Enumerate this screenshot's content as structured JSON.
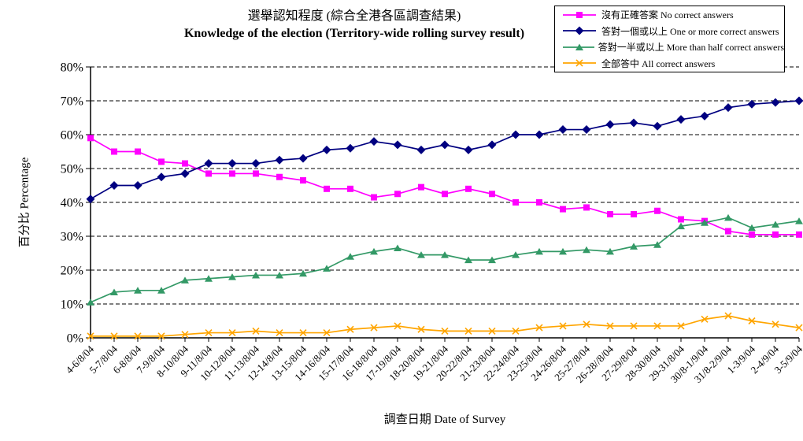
{
  "title": {
    "zh": "選舉認知程度  (綜合全港各區調查結果)",
    "en": "Knowledge of the election (Territory-wide rolling survey result)"
  },
  "axes": {
    "y_title": "百分比 Percentage",
    "x_title": "調查日期 Date of Survey",
    "y_tick_labels": [
      "0%",
      "10%",
      "20%",
      "30%",
      "40%",
      "50%",
      "60%",
      "70%",
      "80%"
    ]
  },
  "chart_data": {
    "type": "line",
    "title": "選舉認知程度 (綜合全港各區調查結果) / Knowledge of the election (Territory-wide rolling survey result)",
    "xlabel": "調查日期 Date of Survey",
    "ylabel": "百分比 Percentage",
    "ylim": [
      0,
      80
    ],
    "y_tick_step": 10,
    "grid": "horizontal-dashed",
    "legend_position": "top-right",
    "categories": [
      "4-6/8/04",
      "5-7/8/04",
      "6-8/8/04",
      "7-9/8/04",
      "8-10/8/04",
      "9-11/8/04",
      "10-12/8/04",
      "11-13/8/04",
      "12-14/8/04",
      "13-15/8/04",
      "14-16/8/04",
      "15-17/8/04",
      "16-18/8/04",
      "17-19/8/04",
      "18-20/8/04",
      "19-21/8/04",
      "20-22/8/04",
      "21-23/8/04",
      "22-24/8/04",
      "23-25/8/04",
      "24-26/8/04",
      "25-27/8/04",
      "26-28//8/04",
      "27-29/8/04",
      "28-30/8/04",
      "29-31/8/04",
      "30/8-1/9/04",
      "31/8-2/9/04",
      "1-3/9/04",
      "2-4/9/04",
      "3-5/9/04"
    ],
    "series": [
      {
        "name": "沒有正確答案 No correct answers",
        "color": "#FF00FF",
        "marker": "square",
        "values": [
          59,
          55,
          55,
          52,
          51.5,
          48.5,
          48.5,
          48.5,
          47.5,
          46.5,
          44,
          44,
          41.5,
          42.5,
          44.5,
          42.5,
          44,
          42.5,
          40,
          40,
          38,
          38.5,
          36.5,
          36.5,
          37.5,
          35,
          34.5,
          31.5,
          30.5,
          30.5,
          30.5
        ]
      },
      {
        "name": "答對一個或以上 One or more correct answers",
        "color": "#000080",
        "marker": "diamond",
        "values": [
          41,
          45,
          45,
          47.5,
          48.5,
          51.5,
          51.5,
          51.5,
          52.5,
          53,
          55.5,
          56,
          58,
          57,
          55.5,
          57,
          55.5,
          57,
          60,
          60,
          61.5,
          61.5,
          63,
          63.5,
          62.5,
          64.5,
          65.5,
          68,
          69,
          69.5,
          70
        ]
      },
      {
        "name": "答對一半或以上 More than half correct answers",
        "color": "#339966",
        "marker": "triangle",
        "values": [
          10.5,
          13.5,
          14,
          14,
          17,
          17.5,
          18,
          18.5,
          18.5,
          19,
          20.5,
          24,
          25.5,
          26.5,
          24.5,
          24.5,
          23,
          23,
          24.5,
          25.5,
          25.5,
          26,
          25.5,
          27,
          27.5,
          33,
          34,
          35.5,
          32.5,
          33.5,
          34.5
        ]
      },
      {
        "name": "全部答中 All correct answers",
        "color": "#FFA500",
        "marker": "x",
        "values": [
          0.5,
          0.5,
          0.5,
          0.5,
          1,
          1.5,
          1.5,
          2,
          1.5,
          1.5,
          1.5,
          2.5,
          3,
          3.5,
          2.5,
          2,
          2,
          2,
          2,
          3,
          3.5,
          4,
          3.5,
          3.5,
          3.5,
          3.5,
          5.5,
          6.5,
          5,
          4,
          3
        ]
      }
    ]
  }
}
